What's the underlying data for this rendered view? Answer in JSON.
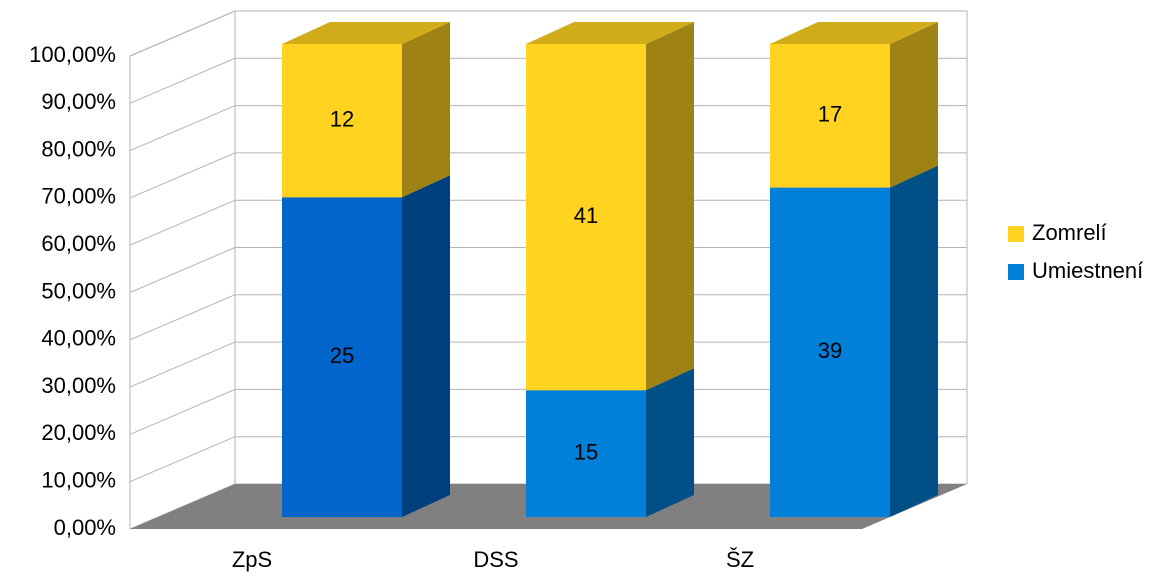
{
  "chart_data": {
    "type": "bar",
    "stacked": "percent",
    "style": "3d",
    "categories": [
      "ZpS",
      "DSS",
      "ŠZ"
    ],
    "series": [
      {
        "name": "Umiestnení",
        "values": [
          25,
          15,
          39
        ],
        "color": "#0080d8"
      },
      {
        "name": "Zomrelí",
        "values": [
          12,
          41,
          17
        ],
        "color": "#ffd320"
      }
    ],
    "y_ticks": [
      "0,00%",
      "10,00%",
      "20,00%",
      "30,00%",
      "40,00%",
      "50,00%",
      "60,00%",
      "70,00%",
      "80,00%",
      "90,00%",
      "100,00%"
    ],
    "ylim": [
      0,
      100
    ],
    "grid": true,
    "legend_position": "right",
    "floor_color": "#808080",
    "highlight_color": "#0066cc"
  }
}
